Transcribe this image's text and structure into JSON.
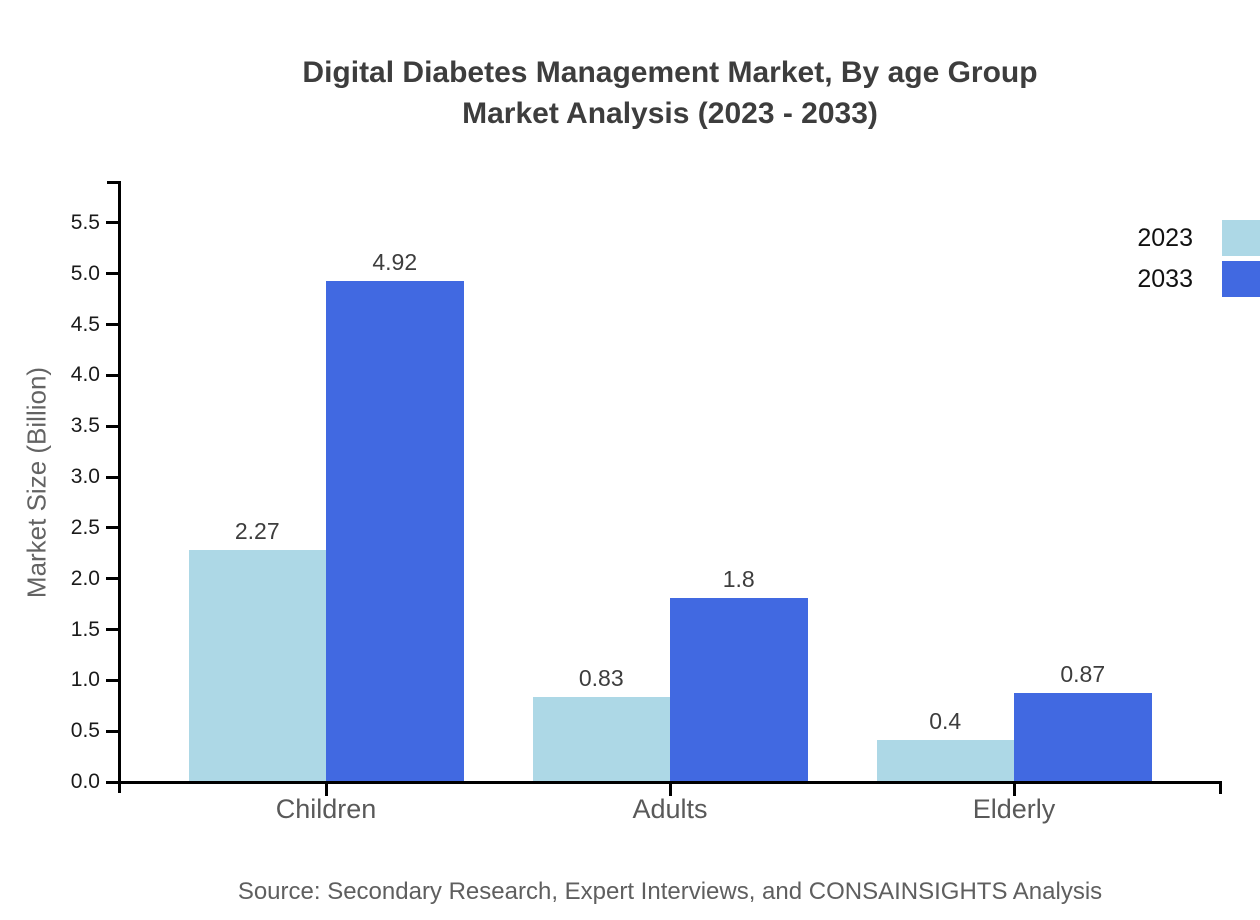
{
  "page": {
    "background": "#ffffff"
  },
  "chart_data": {
    "type": "bar",
    "title": "Digital Diabetes Management Market, By age Group Market Analysis (2023 - 2033)",
    "title_lines": [
      "Digital Diabetes Management Market, By age Group",
      "Market Analysis (2023 - 2033)"
    ],
    "categories": [
      "Children",
      "Adults",
      "Elderly"
    ],
    "series": [
      {
        "name": "2023",
        "color": "#ADD8E6",
        "values": [
          2.27,
          0.83,
          0.4
        ]
      },
      {
        "name": "2033",
        "color": "#4169E1",
        "values": [
          4.92,
          1.8,
          0.87
        ]
      }
    ],
    "xlabel": "",
    "ylabel": "Market Size (Billion)",
    "ylim": [
      0,
      5.9
    ],
    "yticks": [
      0.0,
      0.5,
      1.0,
      1.5,
      2.0,
      2.5,
      3.0,
      3.5,
      4.0,
      4.5,
      5.0,
      5.5
    ],
    "ytick_format_decimals": 1,
    "bar_value_labels": [
      "2.27",
      "0.83",
      "0.4",
      "4.92",
      "1.8",
      "0.87"
    ],
    "grid": false,
    "legend_position": "top-right",
    "source_note": "Source: Secondary Research, Expert Interviews, and CONSAINSIGHTS Analysis",
    "axis_color": "#000000"
  }
}
